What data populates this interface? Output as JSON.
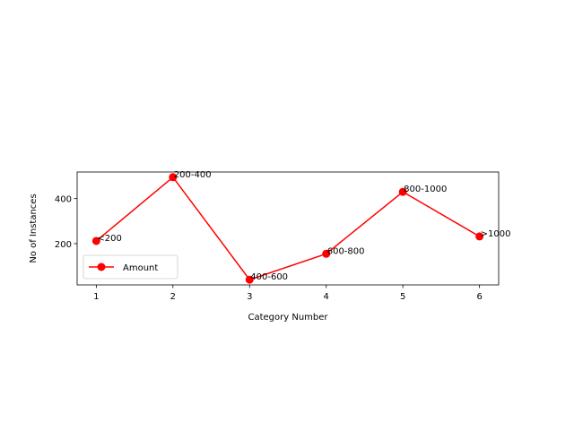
{
  "chart_data": {
    "type": "line",
    "title": "",
    "xlabel": "Category Number",
    "ylabel": "No of Instances",
    "x": [
      1,
      2,
      3,
      4,
      5,
      6
    ],
    "series": [
      {
        "name": "Amount",
        "color": "#ff0000",
        "marker": "circle",
        "values": [
          212,
          495,
          40,
          155,
          430,
          232
        ],
        "point_labels": [
          "<200",
          "200-400",
          "400-600",
          "600-800",
          "800-1000",
          ">1000"
        ]
      }
    ],
    "xlim": [
      0.75,
      6.25
    ],
    "ylim": [
      17,
      518
    ],
    "xticks": [
      1,
      2,
      3,
      4,
      5,
      6
    ],
    "yticks": [
      200,
      400
    ],
    "grid": false,
    "legend": "lower left"
  }
}
